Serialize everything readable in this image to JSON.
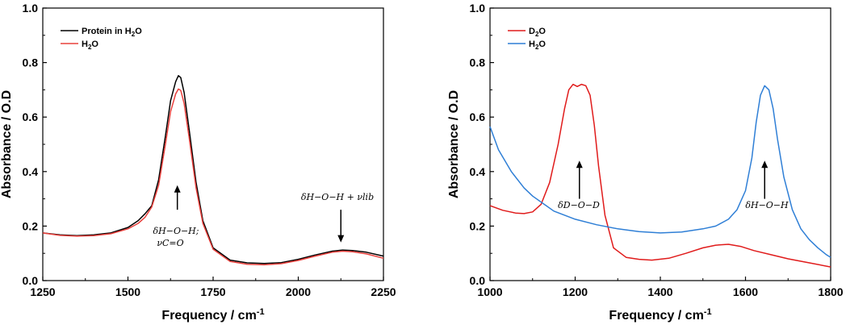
{
  "chart_data": [
    {
      "type": "line",
      "xlabel": "Frequency / cm",
      "xlabel_sup": "-1",
      "ylabel": "Absorbance / O.D",
      "xlim": [
        1250,
        2250
      ],
      "ylim": [
        0.0,
        1.0
      ],
      "xticks": [
        "1250",
        "1500",
        "1750",
        "2000",
        "2250"
      ],
      "xtick_values": [
        1250,
        1500,
        1750,
        2000,
        2250
      ],
      "yticks": [
        "0.0",
        "0.2",
        "0.4",
        "0.6",
        "0.8",
        "1.0"
      ],
      "ytick_values": [
        0.0,
        0.2,
        0.4,
        0.6,
        0.8,
        1.0
      ],
      "grid": false,
      "legend_position": "top-left",
      "series": [
        {
          "name": "Protein in H",
          "name_sub": "2",
          "name_suffix": "O",
          "color": "#000000",
          "x": [
            1250,
            1300,
            1350,
            1400,
            1450,
            1500,
            1530,
            1550,
            1570,
            1590,
            1610,
            1625,
            1640,
            1648,
            1655,
            1665,
            1680,
            1700,
            1720,
            1750,
            1800,
            1850,
            1900,
            1950,
            2000,
            2050,
            2100,
            2130,
            2160,
            2200,
            2250
          ],
          "y": [
            0.175,
            0.168,
            0.165,
            0.168,
            0.175,
            0.195,
            0.22,
            0.245,
            0.275,
            0.37,
            0.53,
            0.66,
            0.73,
            0.752,
            0.745,
            0.69,
            0.55,
            0.36,
            0.22,
            0.12,
            0.075,
            0.065,
            0.063,
            0.066,
            0.078,
            0.094,
            0.108,
            0.112,
            0.11,
            0.104,
            0.09
          ]
        },
        {
          "name": "H",
          "name_sub": "2",
          "name_suffix": "O",
          "color": "#e8403c",
          "x": [
            1250,
            1300,
            1350,
            1400,
            1450,
            1500,
            1530,
            1550,
            1570,
            1590,
            1610,
            1625,
            1640,
            1648,
            1655,
            1665,
            1680,
            1700,
            1720,
            1750,
            1800,
            1850,
            1900,
            1950,
            2000,
            2050,
            2100,
            2130,
            2160,
            2200,
            2250
          ],
          "y": [
            0.175,
            0.166,
            0.163,
            0.165,
            0.172,
            0.19,
            0.21,
            0.232,
            0.27,
            0.35,
            0.5,
            0.62,
            0.685,
            0.703,
            0.698,
            0.65,
            0.52,
            0.34,
            0.21,
            0.115,
            0.07,
            0.06,
            0.058,
            0.062,
            0.074,
            0.09,
            0.104,
            0.108,
            0.106,
            0.098,
            0.082
          ]
        }
      ],
      "annotations": [
        {
          "text": "δH−O−H;",
          "line2": "νC=O",
          "arrow_x": 1645,
          "arrow_y_from": 0.26,
          "arrow_y_to": 0.35
        },
        {
          "text": "δH−O−H + νlib",
          "arrow_x": 2125,
          "arrow_y_from": 0.26,
          "arrow_y_to": 0.14
        }
      ]
    },
    {
      "type": "line",
      "xlabel": "Frequency / cm",
      "xlabel_sup": "-1",
      "ylabel": "Absorbance / O.D",
      "xlim": [
        1000,
        1800
      ],
      "ylim": [
        0.0,
        1.0
      ],
      "xticks": [
        "1000",
        "1200",
        "1400",
        "1600",
        "1800"
      ],
      "xtick_values": [
        1000,
        1200,
        1400,
        1600,
        1800
      ],
      "yticks": [
        "0.0",
        "0.2",
        "0.4",
        "0.6",
        "0.8",
        "1.0"
      ],
      "ytick_values": [
        0.0,
        0.2,
        0.4,
        0.6,
        0.8,
        1.0
      ],
      "grid": false,
      "legend_position": "top-left",
      "series": [
        {
          "name": "D",
          "name_sub": "2",
          "name_suffix": "O",
          "color": "#e01b1b",
          "x": [
            1000,
            1030,
            1060,
            1080,
            1100,
            1120,
            1140,
            1160,
            1175,
            1185,
            1195,
            1205,
            1215,
            1225,
            1235,
            1245,
            1255,
            1270,
            1290,
            1320,
            1350,
            1380,
            1420,
            1460,
            1500,
            1530,
            1560,
            1590,
            1620,
            1660,
            1700,
            1750,
            1800
          ],
          "y": [
            0.275,
            0.258,
            0.248,
            0.246,
            0.252,
            0.28,
            0.36,
            0.5,
            0.63,
            0.7,
            0.72,
            0.712,
            0.72,
            0.715,
            0.68,
            0.57,
            0.42,
            0.24,
            0.12,
            0.085,
            0.078,
            0.075,
            0.082,
            0.1,
            0.12,
            0.13,
            0.133,
            0.125,
            0.11,
            0.095,
            0.08,
            0.065,
            0.05
          ]
        },
        {
          "name": "H",
          "name_sub": "2",
          "name_suffix": "O",
          "color": "#2f7fd6",
          "x": [
            1000,
            1020,
            1050,
            1080,
            1100,
            1150,
            1200,
            1250,
            1300,
            1350,
            1400,
            1450,
            1500,
            1530,
            1560,
            1580,
            1600,
            1615,
            1625,
            1635,
            1645,
            1655,
            1665,
            1675,
            1690,
            1710,
            1730,
            1750,
            1770,
            1790,
            1800
          ],
          "y": [
            0.565,
            0.48,
            0.4,
            0.34,
            0.31,
            0.255,
            0.225,
            0.205,
            0.19,
            0.18,
            0.175,
            0.178,
            0.19,
            0.2,
            0.225,
            0.26,
            0.33,
            0.45,
            0.58,
            0.68,
            0.715,
            0.7,
            0.63,
            0.52,
            0.38,
            0.26,
            0.19,
            0.15,
            0.12,
            0.095,
            0.085
          ]
        }
      ],
      "annotations": [
        {
          "text": "δD−O−D",
          "arrow_x": 1210,
          "arrow_y_from": 0.3,
          "arrow_y_to": 0.44
        },
        {
          "text": "δH−O−H",
          "arrow_x": 1645,
          "arrow_y_from": 0.3,
          "arrow_y_to": 0.44
        }
      ]
    }
  ]
}
